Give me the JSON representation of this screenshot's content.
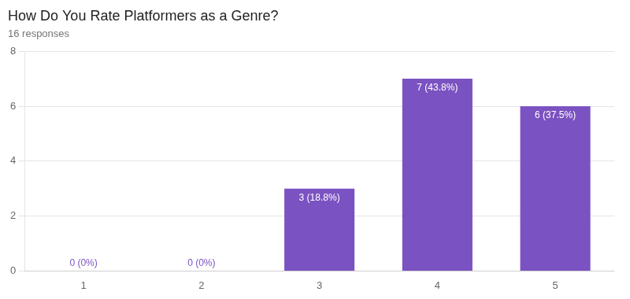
{
  "chart_data": {
    "type": "bar",
    "title": "How Do You Rate Platformers as a Genre?",
    "subtitle": "16 responses",
    "categories": [
      "1",
      "2",
      "3",
      "4",
      "5"
    ],
    "values": [
      0,
      0,
      3,
      7,
      6
    ],
    "value_labels": [
      "0 (0%)",
      "0 (0%)",
      "3 (18.8%)",
      "7 (43.8%)",
      "6 (37.5%)"
    ],
    "color": "#7B52C1",
    "ylim": [
      0,
      8
    ],
    "yticks": [
      0,
      2,
      4,
      6,
      8
    ],
    "grid": true,
    "data_labels": true
  }
}
